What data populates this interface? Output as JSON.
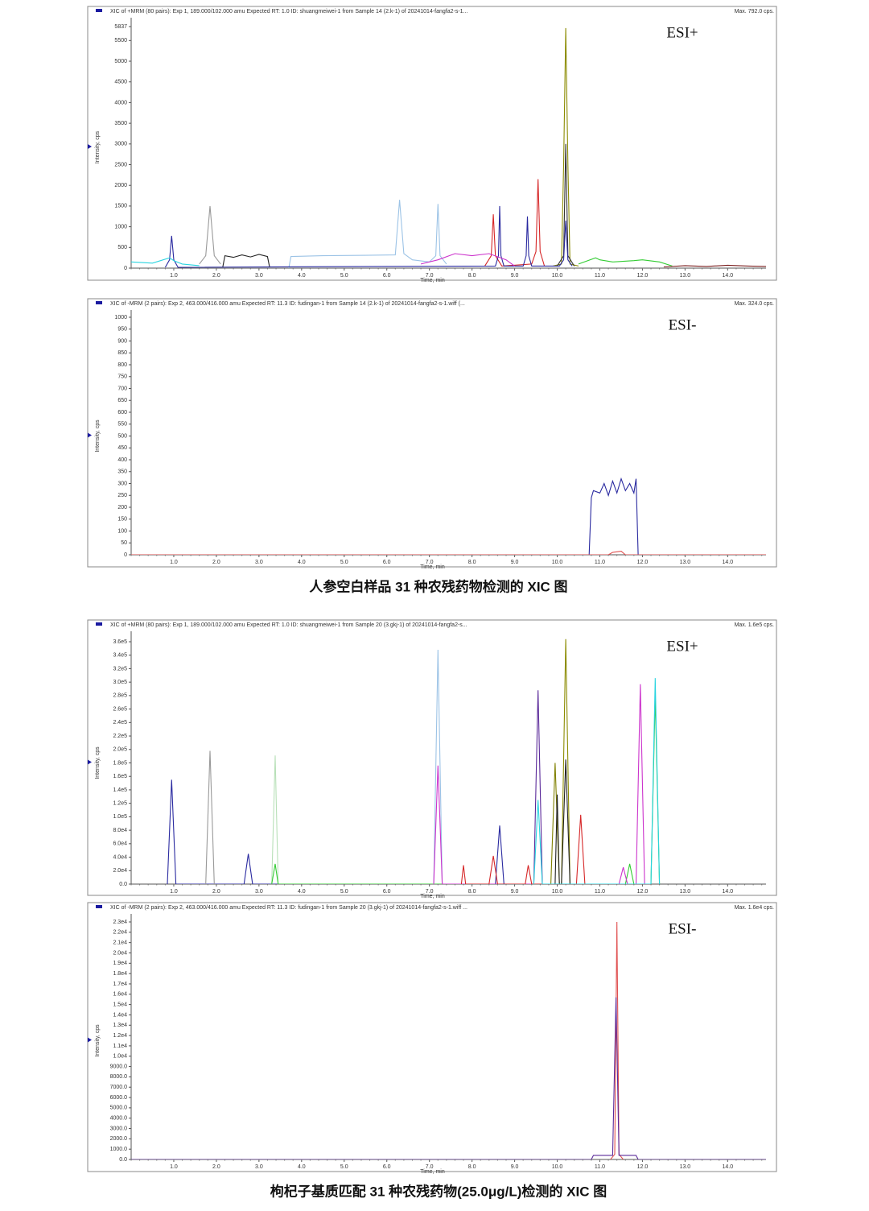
{
  "chart_data": [
    {
      "type": "line",
      "header": "XIC of +MRM (80 pairs): Exp 1, 189.000/102.000 amu Expected RT: 1.0 ID: shuangmeiwei-1 from Sample 14 (2.k-1) of 20241014-fangfa2-s-1...",
      "max_label": "Max. 792.0 cps.",
      "annotation": "ESI+",
      "ylabel": "Intensity, cps",
      "xlabel": "Time, min",
      "xlim": [
        0,
        14.9
      ],
      "ylim": [
        0,
        5837
      ],
      "xticks": [
        {
          "value": 1,
          "label": "1.0"
        },
        {
          "value": 2,
          "label": "2.0"
        },
        {
          "value": 3,
          "label": "3.0"
        },
        {
          "value": 4,
          "label": "4.0"
        },
        {
          "value": 5,
          "label": "5.0"
        },
        {
          "value": 6,
          "label": "6.0"
        },
        {
          "value": 7,
          "label": "7.0"
        },
        {
          "value": 8,
          "label": "8.0"
        },
        {
          "value": 9,
          "label": "9.0"
        },
        {
          "value": 10,
          "label": "10.0"
        },
        {
          "value": 11,
          "label": "11.0"
        },
        {
          "value": 12,
          "label": "12.0"
        },
        {
          "value": 13,
          "label": "13.0"
        },
        {
          "value": 14,
          "label": "14.0"
        }
      ],
      "yticks": [
        0,
        500,
        1000,
        1500,
        2000,
        2500,
        3000,
        3500,
        4000,
        4500,
        5000,
        5500,
        5837
      ],
      "series": [
        {
          "color": "#8b8b00",
          "x": [
            9.9,
            10.1,
            10.15,
            10.2,
            10.25,
            10.3,
            10.5
          ],
          "values": [
            50,
            100,
            2500,
            5800,
            2500,
            100,
            50
          ]
        },
        {
          "color": "#222222",
          "x": [
            2.15,
            2.2,
            2.4,
            2.6,
            2.8,
            3.0,
            3.2,
            3.25
          ],
          "values": [
            20,
            300,
            260,
            320,
            270,
            330,
            280,
            20
          ]
        },
        {
          "color": "#333333",
          "x": [
            10.0,
            10.15,
            10.2,
            10.25,
            10.4
          ],
          "values": [
            50,
            300,
            3000,
            300,
            50
          ]
        },
        {
          "color": "#999999",
          "x": [
            1.6,
            1.75,
            1.85,
            1.95,
            2.1
          ],
          "values": [
            100,
            300,
            1500,
            300,
            100
          ]
        },
        {
          "color": "#9cc3e6",
          "x": [
            3.7,
            3.75,
            4.5,
            5.5,
            6.2,
            6.3,
            6.4,
            6.6,
            7.0,
            7.15,
            7.2,
            7.25,
            7.4
          ],
          "values": [
            0,
            280,
            300,
            310,
            320,
            1650,
            350,
            200,
            150,
            300,
            1550,
            300,
            100
          ]
        },
        {
          "color": "#d62728",
          "x": [
            8.3,
            8.45,
            8.5,
            8.55,
            8.7,
            9.4,
            9.5,
            9.55,
            9.6,
            9.7
          ],
          "values": [
            50,
            300,
            1300,
            300,
            50,
            100,
            400,
            2150,
            400,
            50
          ]
        },
        {
          "color": "#2a2aa0",
          "x": [
            0.8,
            0.9,
            0.95,
            1.0,
            1.1,
            8.55,
            8.62,
            8.65,
            8.68,
            8.75,
            9.2,
            9.27,
            9.3,
            9.33,
            9.4,
            10.05,
            10.15,
            10.2,
            10.25,
            10.35
          ],
          "values": [
            20,
            200,
            780,
            200,
            20,
            50,
            300,
            1500,
            300,
            50,
            50,
            300,
            1250,
            300,
            50,
            50,
            200,
            1150,
            200,
            50
          ]
        },
        {
          "color": "#2ad4e0",
          "x": [
            0,
            0.5,
            0.9,
            1.0,
            1.2,
            1.6
          ],
          "values": [
            150,
            120,
            250,
            180,
            100,
            60
          ]
        },
        {
          "color": "#cc33cc",
          "x": [
            6.8,
            7.2,
            7.6,
            8.0,
            8.4,
            8.8,
            9.0
          ],
          "values": [
            100,
            200,
            350,
            300,
            350,
            200,
            50
          ]
        },
        {
          "color": "#33cc33",
          "x": [
            10.5,
            10.9,
            11.0,
            11.3,
            11.8,
            12.0,
            12.4,
            12.7
          ],
          "values": [
            100,
            250,
            200,
            150,
            180,
            200,
            150,
            50
          ]
        },
        {
          "color": "#7b1f1f",
          "x": [
            12.5,
            13.0,
            13.5,
            14.0,
            14.5,
            14.9
          ],
          "values": [
            30,
            60,
            40,
            70,
            50,
            40
          ]
        }
      ]
    },
    {
      "type": "line",
      "header": "XIC of -MRM (2 pairs): Exp 2, 463.000/416.000 amu Expected RT: 11.3 ID: fudingan-1 from Sample 14 (2.k-1) of 20241014-fangfa2-s-1.wiff (...",
      "max_label": "Max. 324.0 cps.",
      "annotation": "ESI-",
      "ylabel": "Intensity, cps",
      "xlabel": "Time, min",
      "xlim": [
        0,
        14.9
      ],
      "ylim": [
        0,
        1000
      ],
      "xticks": [
        {
          "value": 1,
          "label": "1.0"
        },
        {
          "value": 2,
          "label": "2.0"
        },
        {
          "value": 3,
          "label": "3.0"
        },
        {
          "value": 4,
          "label": "4.0"
        },
        {
          "value": 5,
          "label": "5.0"
        },
        {
          "value": 6,
          "label": "6.0"
        },
        {
          "value": 7,
          "label": "7.0"
        },
        {
          "value": 8,
          "label": "8.0"
        },
        {
          "value": 9,
          "label": "9.0"
        },
        {
          "value": 10,
          "label": "10.0"
        },
        {
          "value": 11,
          "label": "11.0"
        },
        {
          "value": 12,
          "label": "12.0"
        },
        {
          "value": 13,
          "label": "13.0"
        },
        {
          "value": 14,
          "label": "14.0"
        }
      ],
      "yticks": [
        0,
        50,
        100,
        150,
        200,
        250,
        300,
        350,
        400,
        450,
        500,
        550,
        600,
        650,
        700,
        750,
        800,
        850,
        900,
        950,
        1000
      ],
      "series": [
        {
          "color": "#2a2aa0",
          "x": [
            0,
            10.75,
            10.8,
            10.85,
            11.0,
            11.1,
            11.2,
            11.3,
            11.4,
            11.5,
            11.6,
            11.7,
            11.8,
            11.85,
            11.9,
            14.9
          ],
          "values": [
            0,
            0,
            240,
            270,
            260,
            300,
            250,
            310,
            260,
            320,
            270,
            300,
            260,
            320,
            0,
            0
          ]
        },
        {
          "color": "#e05050",
          "x": [
            0,
            11.2,
            11.3,
            11.5,
            11.6,
            14.9
          ],
          "values": [
            0,
            0,
            10,
            15,
            0,
            0
          ]
        }
      ]
    },
    {
      "type": "line",
      "header": "XIC of +MRM (80 pairs): Exp 1, 189.000/102.000 amu Expected RT: 1.0 ID: shuangmeiwei-1 from Sample 20 (3.gkj-1) of 20241014-fangfa2-s...",
      "max_label": "Max. 1.6e5 cps.",
      "annotation": "ESI+",
      "ylabel": "Intensity, cps",
      "xlabel": "Time, min",
      "xlim": [
        0,
        14.9
      ],
      "ylim": [
        0,
        360000
      ],
      "xticks": [
        {
          "value": 1,
          "label": "1.0"
        },
        {
          "value": 2,
          "label": "2.0"
        },
        {
          "value": 3,
          "label": "3.0"
        },
        {
          "value": 4,
          "label": "4.0"
        },
        {
          "value": 5,
          "label": "5.0"
        },
        {
          "value": 6,
          "label": "6.0"
        },
        {
          "value": 7,
          "label": "7.0"
        },
        {
          "value": 8,
          "label": "8.0"
        },
        {
          "value": 9,
          "label": "9.0"
        },
        {
          "value": 10,
          "label": "10.0"
        },
        {
          "value": 11,
          "label": "11.0"
        },
        {
          "value": 12,
          "label": "12.0"
        },
        {
          "value": 13,
          "label": "13.0"
        },
        {
          "value": 14,
          "label": "14.0"
        }
      ],
      "yticks": [
        {
          "value": 0,
          "label": "0.0"
        },
        {
          "value": 20000,
          "label": "2.0e4"
        },
        {
          "value": 40000,
          "label": "4.0e4"
        },
        {
          "value": 60000,
          "label": "6.0e4"
        },
        {
          "value": 80000,
          "label": "8.0e4"
        },
        {
          "value": 100000,
          "label": "1.0e5"
        },
        {
          "value": 120000,
          "label": "1.2e5"
        },
        {
          "value": 140000,
          "label": "1.4e5"
        },
        {
          "value": 160000,
          "label": "1.6e5"
        },
        {
          "value": 180000,
          "label": "1.8e5"
        },
        {
          "value": 200000,
          "label": "2.0e5"
        },
        {
          "value": 220000,
          "label": "2.2e5"
        },
        {
          "value": 240000,
          "label": "2.4e5"
        },
        {
          "value": 260000,
          "label": "2.6e5"
        },
        {
          "value": 280000,
          "label": "2.8e5"
        },
        {
          "value": 300000,
          "label": "3.0e5"
        },
        {
          "value": 320000,
          "label": "3.2e5"
        },
        {
          "value": 340000,
          "label": "3.4e5"
        },
        {
          "value": 360000,
          "label": "3.6e5"
        }
      ],
      "series": [
        {
          "color": "#2a2aa0",
          "x": [
            0.85,
            0.95,
            1.05,
            2.65,
            2.75,
            2.85,
            8.55,
            8.65,
            8.75
          ],
          "values": [
            0,
            155000,
            0,
            0,
            45000,
            0,
            0,
            87000,
            0
          ]
        },
        {
          "color": "#999999",
          "x": [
            1.75,
            1.85,
            1.95
          ],
          "values": [
            0,
            198000,
            0
          ]
        },
        {
          "color": "#b8e0b8",
          "x": [
            3.3,
            3.38,
            3.45
          ],
          "values": [
            0,
            191000,
            0
          ]
        },
        {
          "color": "#33cc33",
          "x": [
            3.3,
            3.38,
            3.45,
            11.6,
            11.7,
            11.8,
            12.2,
            12.3,
            12.4
          ],
          "values": [
            0,
            30000,
            0,
            0,
            30000,
            0,
            0,
            280000,
            0
          ]
        },
        {
          "color": "#9cc3e6",
          "x": [
            7.1,
            7.2,
            7.3
          ],
          "values": [
            0,
            348000,
            0
          ]
        },
        {
          "color": "#cc33cc",
          "x": [
            7.1,
            7.2,
            7.3,
            11.45,
            11.55,
            11.65,
            11.85,
            11.95,
            12.05
          ],
          "values": [
            0,
            176000,
            0,
            0,
            25000,
            0,
            0,
            297000,
            0
          ]
        },
        {
          "color": "#5b2a9a",
          "x": [
            9.45,
            9.55,
            9.65
          ],
          "values": [
            0,
            288000,
            0
          ]
        },
        {
          "color": "#8b8b00",
          "x": [
            10.1,
            10.2,
            10.3
          ],
          "values": [
            0,
            364000,
            0
          ]
        },
        {
          "color": "#808000",
          "x": [
            9.85,
            9.95,
            10.05
          ],
          "values": [
            0,
            180000,
            0
          ]
        },
        {
          "color": "#222222",
          "x": [
            9.95,
            10.0,
            10.05,
            10.1,
            10.2,
            10.3
          ],
          "values": [
            0,
            133000,
            0,
            0,
            185000,
            0
          ]
        },
        {
          "color": "#d62728",
          "x": [
            7.75,
            7.8,
            7.85,
            8.4,
            8.5,
            8.6,
            9.25,
            9.32,
            9.4,
            10.45,
            10.55,
            10.65
          ],
          "values": [
            0,
            28000,
            0,
            0,
            42000,
            0,
            0,
            28000,
            0,
            0,
            103000,
            0
          ]
        },
        {
          "color": "#2ad4e0",
          "x": [
            9.45,
            9.55,
            9.65,
            12.2,
            12.3,
            12.4
          ],
          "values": [
            0,
            125000,
            0,
            0,
            306000,
            0
          ]
        }
      ]
    },
    {
      "type": "line",
      "header": "XIC of -MRM (2 pairs): Exp 2, 463.000/416.000 amu Expected RT: 11.3 ID: fudingan-1 from Sample 20 (3.gkj-1) of 20241014-fangfa2-s-1.wiff ...",
      "max_label": "Max. 1.6e4 cps.",
      "annotation": "ESI-",
      "ylabel": "Intensity, cps",
      "xlabel": "Time, min",
      "xlim": [
        0,
        14.9
      ],
      "ylim": [
        0,
        23000
      ],
      "xticks": [
        {
          "value": 1,
          "label": "1.0"
        },
        {
          "value": 2,
          "label": "2.0"
        },
        {
          "value": 3,
          "label": "3.0"
        },
        {
          "value": 4,
          "label": "4.0"
        },
        {
          "value": 5,
          "label": "5.0"
        },
        {
          "value": 6,
          "label": "6.0"
        },
        {
          "value": 7,
          "label": "7.0"
        },
        {
          "value": 8,
          "label": "8.0"
        },
        {
          "value": 9,
          "label": "9.0"
        },
        {
          "value": 10,
          "label": "10.0"
        },
        {
          "value": 11,
          "label": "11.0"
        },
        {
          "value": 12,
          "label": "12.0"
        },
        {
          "value": 13,
          "label": "13.0"
        },
        {
          "value": 14,
          "label": "14.0"
        }
      ],
      "yticks": [
        {
          "value": 0,
          "label": "0.0"
        },
        {
          "value": 1000,
          "label": "1000.0"
        },
        {
          "value": 2000,
          "label": "2000.0"
        },
        {
          "value": 3000,
          "label": "3000.0"
        },
        {
          "value": 4000,
          "label": "4000.0"
        },
        {
          "value": 5000,
          "label": "5000.0"
        },
        {
          "value": 6000,
          "label": "6000.0"
        },
        {
          "value": 7000,
          "label": "7000.0"
        },
        {
          "value": 8000,
          "label": "8000.0"
        },
        {
          "value": 9000,
          "label": "9000.0"
        },
        {
          "value": 10000,
          "label": "1.0e4"
        },
        {
          "value": 11000,
          "label": "1.1e4"
        },
        {
          "value": 12000,
          "label": "1.2e4"
        },
        {
          "value": 13000,
          "label": "1.3e4"
        },
        {
          "value": 14000,
          "label": "1.4e4"
        },
        {
          "value": 15000,
          "label": "1.5e4"
        },
        {
          "value": 16000,
          "label": "1.6e4"
        },
        {
          "value": 17000,
          "label": "1.7e4"
        },
        {
          "value": 18000,
          "label": "1.8e4"
        },
        {
          "value": 19000,
          "label": "1.9e4"
        },
        {
          "value": 20000,
          "label": "2.0e4"
        },
        {
          "value": 21000,
          "label": "2.1e4"
        },
        {
          "value": 22000,
          "label": "2.2e4"
        },
        {
          "value": 23000,
          "label": "2.3e4"
        }
      ],
      "series": [
        {
          "color": "#e05050",
          "x": [
            11.25,
            11.35,
            11.4,
            11.45,
            11.55
          ],
          "values": [
            0,
            500,
            23000,
            500,
            0
          ]
        },
        {
          "color": "#5b2a9a",
          "x": [
            0,
            10.8,
            10.85,
            11.3,
            11.38,
            11.45,
            11.85,
            11.9,
            14.9
          ],
          "values": [
            0,
            0,
            400,
            400,
            15700,
            400,
            400,
            0,
            0
          ]
        }
      ]
    }
  ],
  "captions": [
    "人参空白样品 31 种农残药物检测的 XIC 图",
    "枸杞子基质匹配 31 种农残药物(25.0μg/L)检测的 XIC 图"
  ]
}
